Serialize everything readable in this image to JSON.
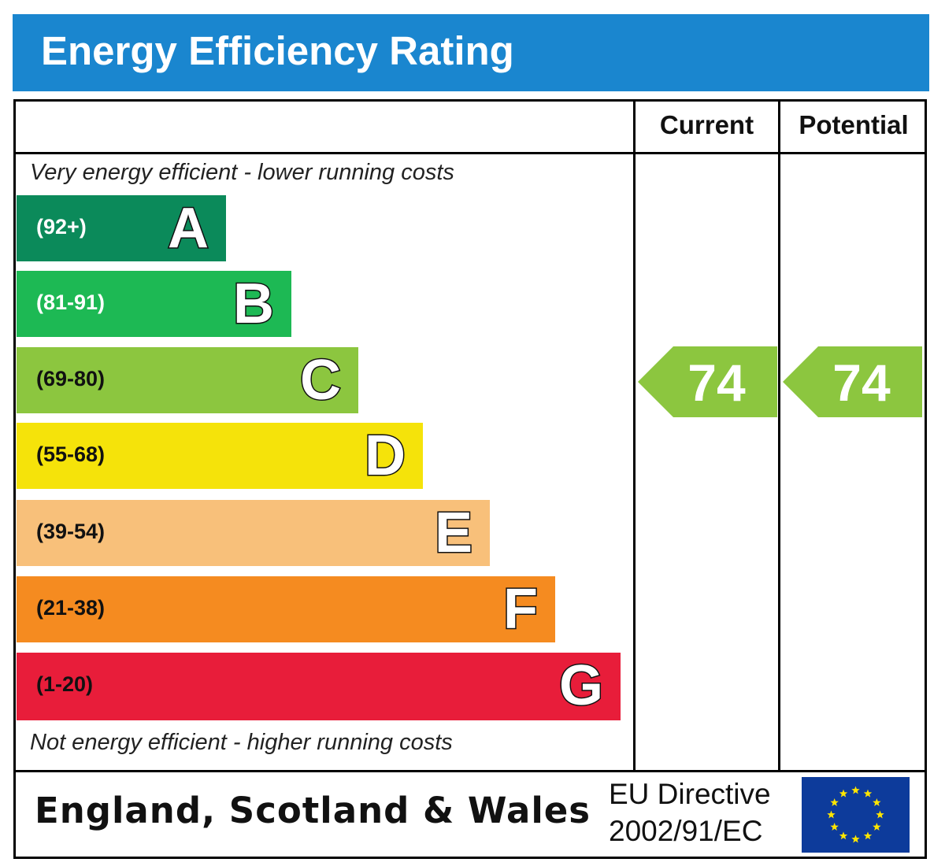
{
  "title": "Energy Efficiency Rating",
  "columns": {
    "current": "Current",
    "potential": "Potential"
  },
  "notes": {
    "top": "Very energy efficient - lower running costs",
    "bottom": "Not energy efficient - higher running costs"
  },
  "chart_data": {
    "type": "bar",
    "categories": [
      "A",
      "B",
      "C",
      "D",
      "E",
      "F",
      "G"
    ],
    "ranges": [
      "(92+)",
      "(81-91)",
      "(69-80)",
      "(55-68)",
      "(39-54)",
      "(21-38)",
      "(1-20)"
    ],
    "colors": [
      "#0b8a5a",
      "#1db954",
      "#8cc63f",
      "#f5e30a",
      "#f8c07a",
      "#f58b20",
      "#e81d3a"
    ],
    "range_text_colors": [
      "#ffffff",
      "#ffffff",
      "#111111",
      "#111111",
      "#111111",
      "#111111",
      "#111111"
    ],
    "current_rating": 74,
    "potential_rating": 74,
    "rating_band": "C",
    "rating_color": "#8cc63f"
  },
  "footer": {
    "country": "England, Scotland & Wales",
    "directive_line1": "EU Directive",
    "directive_line2": "2002/91/EC"
  }
}
